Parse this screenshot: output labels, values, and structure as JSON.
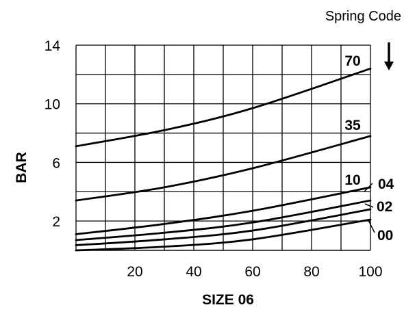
{
  "chart_data": {
    "type": "line",
    "title": "",
    "xlabel": "SIZE 06",
    "ylabel": "BAR",
    "header_label": "Spring Code",
    "xlim": [
      0,
      100
    ],
    "ylim": [
      0,
      14
    ],
    "x_ticks": [
      "20",
      "40",
      "60",
      "80",
      "100"
    ],
    "y_ticks": [
      "14",
      "10",
      "6",
      "2"
    ],
    "grid": true,
    "series": [
      {
        "name": "70",
        "x": [
          0,
          30,
          60,
          100
        ],
        "values": [
          7.1,
          8.2,
          9.7,
          12.4
        ]
      },
      {
        "name": "35",
        "x": [
          0,
          30,
          60,
          100
        ],
        "values": [
          3.4,
          4.3,
          5.6,
          7.8
        ]
      },
      {
        "name": "10",
        "x": [
          0,
          30,
          60,
          100
        ],
        "values": [
          1.1,
          1.8,
          2.7,
          4.3
        ]
      },
      {
        "name": "04",
        "x": [
          0,
          30,
          60,
          100
        ],
        "values": [
          0.7,
          1.2,
          1.9,
          3.4
        ]
      },
      {
        "name": "02",
        "x": [
          0,
          30,
          60,
          100
        ],
        "values": [
          0.35,
          0.75,
          1.35,
          2.8
        ]
      },
      {
        "name": "00",
        "x": [
          0,
          30,
          60,
          100
        ],
        "values": [
          0,
          0.25,
          0.75,
          2.1
        ]
      }
    ]
  }
}
